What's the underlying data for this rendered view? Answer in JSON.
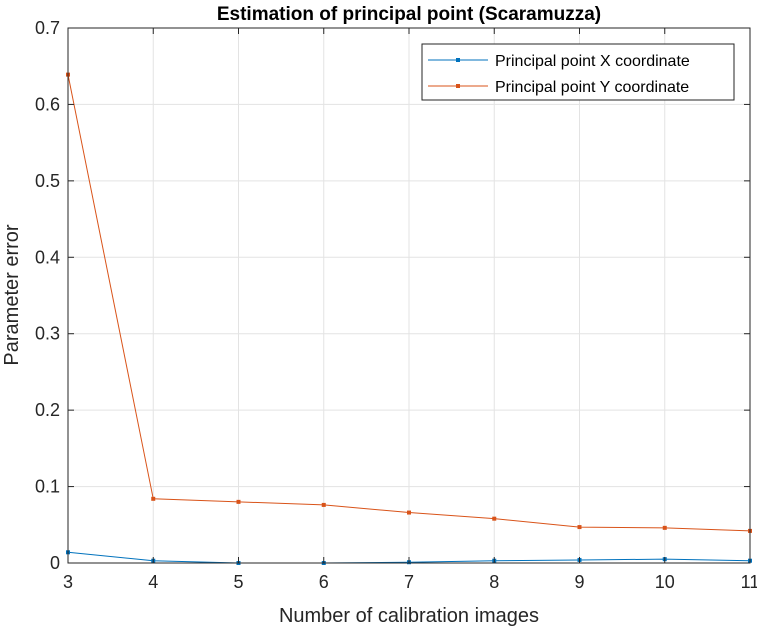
{
  "chart_data": {
    "type": "line",
    "title": "Estimation of principal point (Scaramuzza)",
    "xlabel": "Number of calibration images",
    "ylabel": "Parameter error",
    "x": [
      3,
      4,
      5,
      6,
      7,
      8,
      9,
      10,
      11
    ],
    "xlim": [
      3,
      11
    ],
    "ylim": [
      0,
      0.7
    ],
    "xticks": [
      3,
      4,
      5,
      6,
      7,
      8,
      9,
      10,
      11
    ],
    "xtick_labels": [
      "3",
      "4",
      "5",
      "6",
      "7",
      "8",
      "9",
      "10",
      "11"
    ],
    "yticks": [
      0,
      0.1,
      0.2,
      0.3,
      0.4,
      0.5,
      0.6,
      0.7
    ],
    "ytick_labels": [
      "0",
      "0.1",
      "0.2",
      "0.3",
      "0.4",
      "0.5",
      "0.6",
      "0.7"
    ],
    "grid": true,
    "legend_position": "top-right",
    "series": [
      {
        "name": "Principal point X coordinate",
        "color": "#0072BD",
        "marker": "square",
        "values": [
          0.014,
          0.003,
          0.0,
          0.0,
          0.001,
          0.003,
          0.004,
          0.005,
          0.003
        ]
      },
      {
        "name": "Principal point Y coordinate",
        "color": "#D95319",
        "marker": "square",
        "values": [
          0.639,
          0.084,
          0.08,
          0.076,
          0.066,
          0.058,
          0.047,
          0.046,
          0.042
        ]
      }
    ]
  }
}
